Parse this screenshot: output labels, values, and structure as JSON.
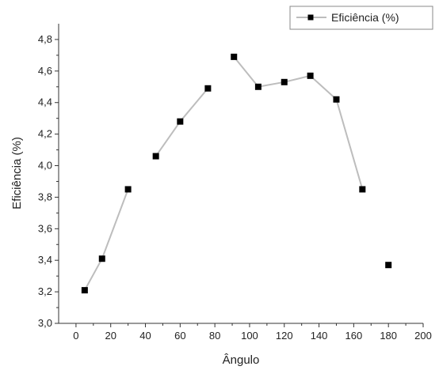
{
  "chart_data": {
    "type": "scatter",
    "xlabel": "Ângulo",
    "ylabel": "Eficiência (%)",
    "xlim": [
      -10,
      200
    ],
    "ylim": [
      3.0,
      4.9
    ],
    "x_ticks": [
      "0",
      "20",
      "40",
      "60",
      "80",
      "100",
      "120",
      "140",
      "160",
      "180",
      "200"
    ],
    "y_ticks": [
      "3,0",
      "3,2",
      "3,4",
      "3,6",
      "3,8",
      "4,0",
      "4,2",
      "4,4",
      "4,6",
      "4,8"
    ],
    "legend": {
      "label": "Eficiência (%)",
      "position": "top-right"
    },
    "series": [
      {
        "name": "Eficiência (%)",
        "color": "#000000",
        "line_color": "#bdbdbd",
        "marker": "square",
        "x": [
          5,
          15,
          30,
          46,
          60,
          76,
          91,
          105,
          120,
          135,
          150,
          165,
          180
        ],
        "y": [
          3.21,
          3.41,
          3.85,
          4.06,
          4.28,
          4.49,
          4.69,
          4.5,
          4.53,
          4.57,
          4.42,
          3.85,
          3.37
        ],
        "connected": [
          true,
          true,
          false,
          true,
          true,
          false,
          true,
          true,
          true,
          true,
          true,
          false
        ]
      }
    ]
  }
}
